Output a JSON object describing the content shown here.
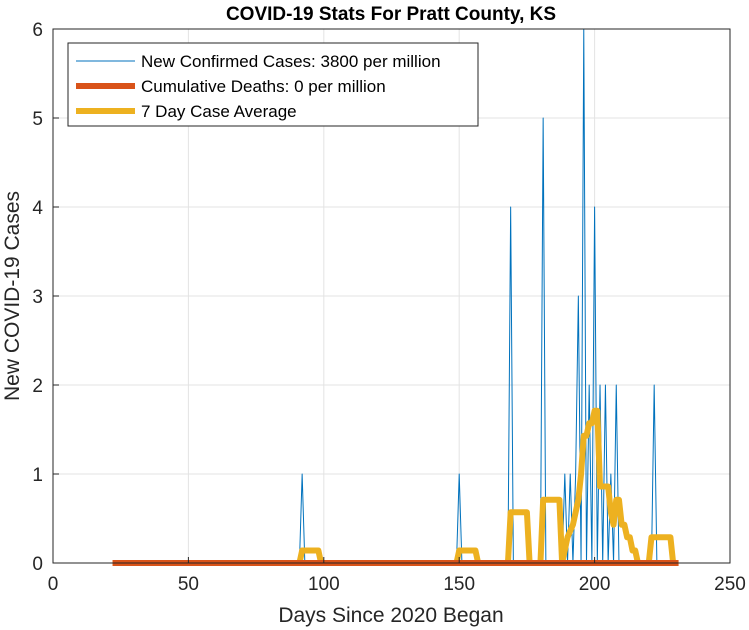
{
  "chart_data": {
    "type": "line",
    "title": "COVID-19 Stats For Pratt County, KS",
    "xlabel": "Days Since 2020 Began",
    "ylabel": "New COVID-19 Cases",
    "xlim": [
      0,
      250
    ],
    "ylim": [
      0,
      6
    ],
    "xticks": [
      "0",
      "50",
      "100",
      "150",
      "200",
      "250"
    ],
    "yticks": [
      "0",
      "1",
      "2",
      "3",
      "4",
      "5",
      "6"
    ],
    "grid": true,
    "legend_position": "top-left",
    "series": [
      {
        "name": "New Confirmed Cases: 3800 per million",
        "color": "#0072BD",
        "style": "thin",
        "x": [
          22,
          90,
          91,
          92,
          93,
          149,
          150,
          151,
          167,
          168,
          169,
          170,
          179,
          180,
          181,
          182,
          188,
          189,
          190,
          191,
          192,
          193,
          194,
          195,
          196,
          197,
          198,
          199,
          200,
          201,
          202,
          203,
          204,
          205,
          206,
          207,
          208,
          209,
          210,
          211,
          212,
          213,
          221,
          222,
          223,
          231
        ],
        "y": [
          0,
          0,
          0,
          1,
          0,
          0,
          1,
          0,
          0,
          0,
          4,
          0,
          0,
          0,
          5,
          0,
          0,
          1,
          0,
          1,
          0,
          1,
          3,
          0,
          6,
          0,
          2,
          0,
          4,
          0,
          2,
          0,
          2,
          0,
          1,
          0,
          2,
          0,
          0,
          0,
          0,
          0,
          0,
          2,
          0,
          0
        ]
      },
      {
        "name": "Cumulative Deaths: 0 per million",
        "color": "#D95319",
        "style": "thick",
        "x": [
          22,
          231
        ],
        "y": [
          0,
          0
        ]
      },
      {
        "name": "7 Day Case Average",
        "color": "#EDB120",
        "style": "thick",
        "x": [
          22,
          91,
          92,
          98,
          99,
          149,
          150,
          156,
          157,
          168,
          169,
          175,
          176,
          180,
          181,
          187,
          188,
          190,
          192,
          193,
          194,
          195,
          196,
          197,
          198,
          199,
          200,
          201,
          202,
          203,
          204,
          205,
          206,
          207,
          208,
          209,
          210,
          211,
          212,
          213,
          214,
          215,
          216,
          220,
          221,
          222,
          228,
          229,
          231
        ],
        "y": [
          0,
          0,
          0.14,
          0.14,
          0,
          0,
          0.14,
          0.14,
          0,
          0,
          0.57,
          0.57,
          0,
          0,
          0.71,
          0.71,
          0,
          0.29,
          0.43,
          0.57,
          0.71,
          1.0,
          1.43,
          1.43,
          1.57,
          1.57,
          1.71,
          1.71,
          0.86,
          0.86,
          0.86,
          0.86,
          0.57,
          0.43,
          0.71,
          0.71,
          0.43,
          0.43,
          0.29,
          0.29,
          0.14,
          0.14,
          0,
          0,
          0.29,
          0.29,
          0.29,
          0,
          0
        ]
      }
    ]
  }
}
